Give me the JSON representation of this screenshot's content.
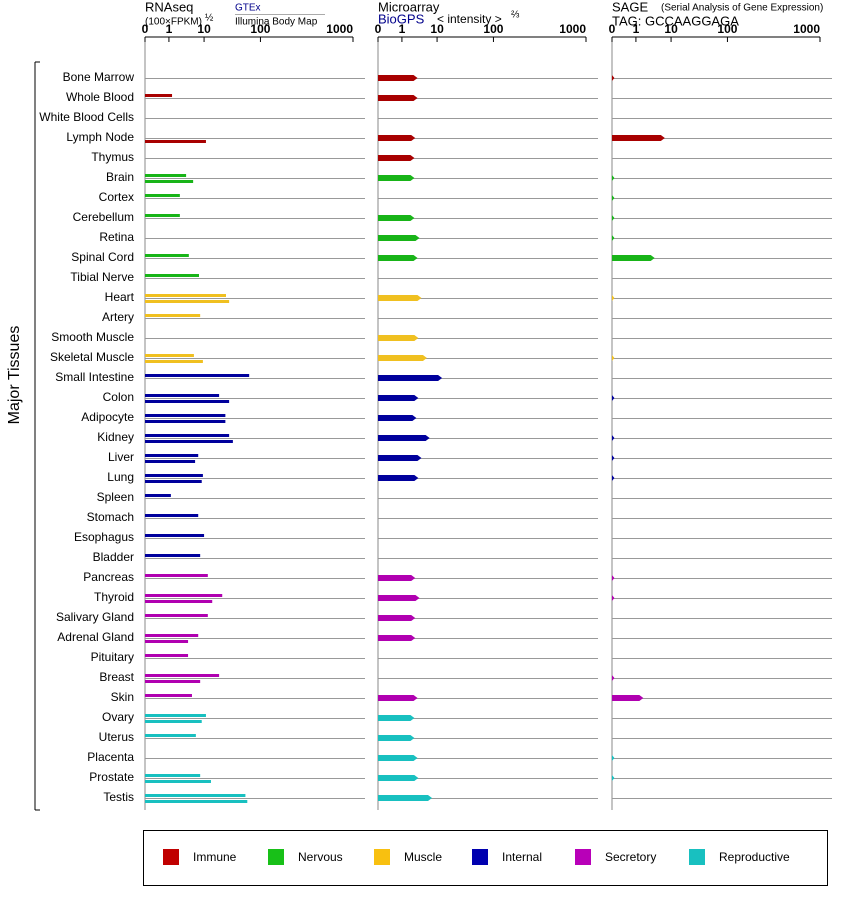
{
  "y_label": "Major Tissues",
  "categories": [
    "Bone Marrow",
    "Whole Blood",
    "White Blood Cells",
    "Lymph Node",
    "Thymus",
    "Brain",
    "Cortex",
    "Cerebellum",
    "Retina",
    "Spinal Cord",
    "Tibial Nerve",
    "Heart",
    "Artery",
    "Smooth Muscle",
    "Skeletal Muscle",
    "Small Intestine",
    "Colon",
    "Adipocyte",
    "Kidney",
    "Liver",
    "Lung",
    "Spleen",
    "Stomach",
    "Esophagus",
    "Bladder",
    "Pancreas",
    "Thyroid",
    "Salivary Gland",
    "Adrenal Gland",
    "Pituitary",
    "Breast",
    "Skin",
    "Ovary",
    "Uterus",
    "Placenta",
    "Prostate",
    "Testis"
  ],
  "colors": [
    "#a80000",
    "#a80000",
    "#a80000",
    "#a80000",
    "#a80000",
    "#18b418",
    "#18b418",
    "#18b418",
    "#18b418",
    "#18b418",
    "#18b418",
    "#f0c020",
    "#f0c020",
    "#f0c020",
    "#f0c020",
    "#00009c",
    "#00009c",
    "#00009c",
    "#00009c",
    "#00009c",
    "#00009c",
    "#00009c",
    "#00009c",
    "#00009c",
    "#00009c",
    "#b000b0",
    "#b000b0",
    "#b000b0",
    "#b000b0",
    "#b000b0",
    "#b000b0",
    "#b000b0",
    "#18c0c0",
    "#18c0c0",
    "#18c0c0",
    "#18c0c0",
    "#18c0c0"
  ],
  "legend": [
    {
      "name": "Immune",
      "color": "#c00000"
    },
    {
      "name": "Nervous",
      "color": "#18c018"
    },
    {
      "name": "Muscle",
      "color": "#f8c010"
    },
    {
      "name": "Internal",
      "color": "#0000b0"
    },
    {
      "name": "Secretory",
      "color": "#b800b8"
    },
    {
      "name": "Reproductive",
      "color": "#18c0c0"
    }
  ],
  "chart_data": [
    {
      "type": "bar",
      "title": "RNAseq",
      "subtitle": "(100×FPKM)",
      "exponent": "½",
      "xlim": [
        0,
        1000
      ],
      "xticks": [
        0,
        1,
        10,
        100,
        1000
      ],
      "series": [
        {
          "name": "GTEx",
          "values": [
            null,
            1.8,
            null,
            null,
            null,
            5.4,
            3.8,
            3.8,
            null,
            6.1,
            8.7,
            45,
            9,
            null,
            7.4,
            82,
            34,
            44,
            50,
            8.5,
            9.7,
            1.5,
            8.5,
            10,
            9,
            16,
            39,
            16,
            8.5,
            5.9,
            34,
            6.9,
            13,
            7.9,
            null,
            9,
            76
          ]
        },
        {
          "name": "Illumina Body Map",
          "values": [
            null,
            null,
            null,
            13,
            null,
            7.2,
            null,
            null,
            null,
            null,
            null,
            50,
            null,
            null,
            9.7,
            null,
            50,
            44,
            56,
            7.7,
            9.4,
            null,
            null,
            null,
            null,
            null,
            23,
            null,
            5.9,
            null,
            9,
            null,
            9.4,
            null,
            null,
            21,
            79
          ]
        }
      ]
    },
    {
      "type": "bar",
      "title": "Microarray",
      "subtitle": "< intensity >",
      "exponent": "⅔",
      "xlim": [
        0,
        1000
      ],
      "xticks": [
        0,
        1,
        10,
        100,
        1000
      ],
      "series": [
        {
          "name": "BioGPS",
          "values": [
            5,
            5,
            null,
            4.4,
            4.2,
            4.2,
            null,
            4.2,
            5.5,
            5,
            null,
            6,
            null,
            5.2,
            7.4,
            18,
            5.2,
            4.7,
            8.1,
            6,
            5.2,
            null,
            null,
            null,
            null,
            4.4,
            5.5,
            4.4,
            4.4,
            null,
            null,
            5,
            4.2,
            4.2,
            5,
            5.2,
            8.7
          ]
        }
      ]
    },
    {
      "type": "bar",
      "title": "SAGE",
      "subtitle": "(Serial Analysis of Gene Expression)",
      "tag": "TAG: GCCAAGGAGA",
      "xlim": [
        0,
        1000
      ],
      "xticks": [
        0,
        1,
        10,
        100,
        1000
      ],
      "series": [
        {
          "values": [
            0.1,
            null,
            null,
            8.4,
            null,
            0.1,
            0.1,
            0.1,
            0.1,
            5.8,
            null,
            0.1,
            null,
            null,
            0.1,
            null,
            0.1,
            null,
            0.1,
            0.1,
            0.1,
            null,
            null,
            null,
            null,
            0.1,
            0.1,
            null,
            null,
            null,
            0.1,
            2.9,
            null,
            null,
            0.1,
            0.1,
            null
          ]
        }
      ]
    }
  ]
}
